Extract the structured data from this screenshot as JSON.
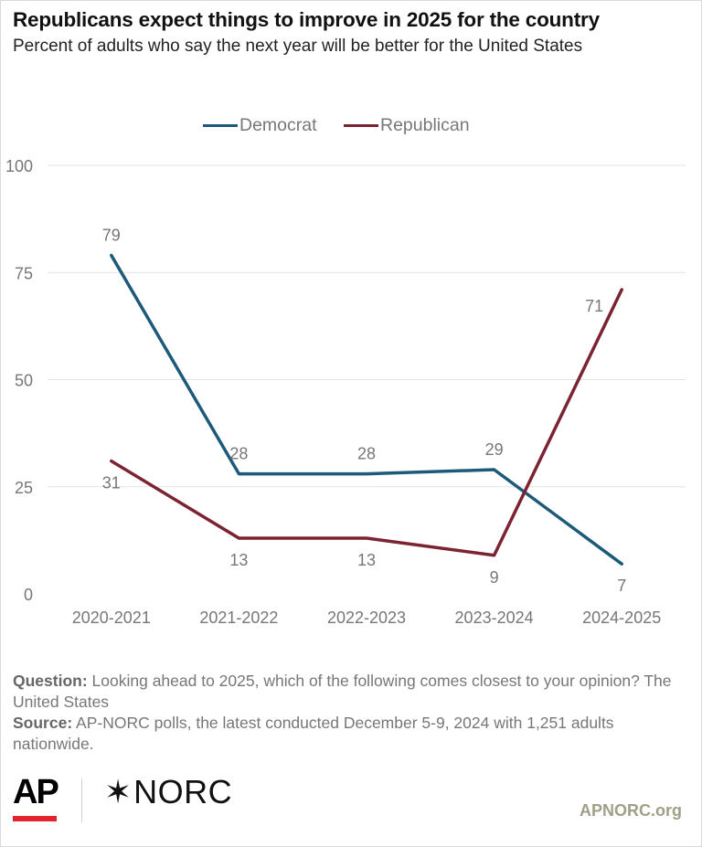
{
  "title": "Republicans expect things to improve in 2025 for the country",
  "subtitle": "Percent of adults who say the next year will be better for the United States",
  "chart_data": {
    "type": "line",
    "categories": [
      "2020-2021",
      "2021-2022",
      "2022-2023",
      "2023-2024",
      "2024-2025"
    ],
    "series": [
      {
        "name": "Democrat",
        "color": "#1d5a7a",
        "values": [
          79,
          28,
          28,
          29,
          7
        ]
      },
      {
        "name": "Republican",
        "color": "#7b2332",
        "values": [
          31,
          13,
          13,
          9,
          71
        ]
      }
    ],
    "ylim": [
      0,
      100
    ],
    "yticks": [
      0,
      25,
      50,
      75,
      100
    ],
    "grid": true,
    "legend": "top-center"
  },
  "notes": {
    "question_label": "Question:",
    "question_text": " Looking ahead to 2025, which of the following comes closest to your opinion? The United States",
    "source_label": "Source:",
    "source_text": " AP-NORC polls, the latest conducted December 5-9, 2024 with 1,251 adults nationwide."
  },
  "footer": {
    "ap_logo": "AP",
    "norc_logo_star": "✶",
    "norc_logo_text": "NORC",
    "url": "APNORC.org"
  }
}
